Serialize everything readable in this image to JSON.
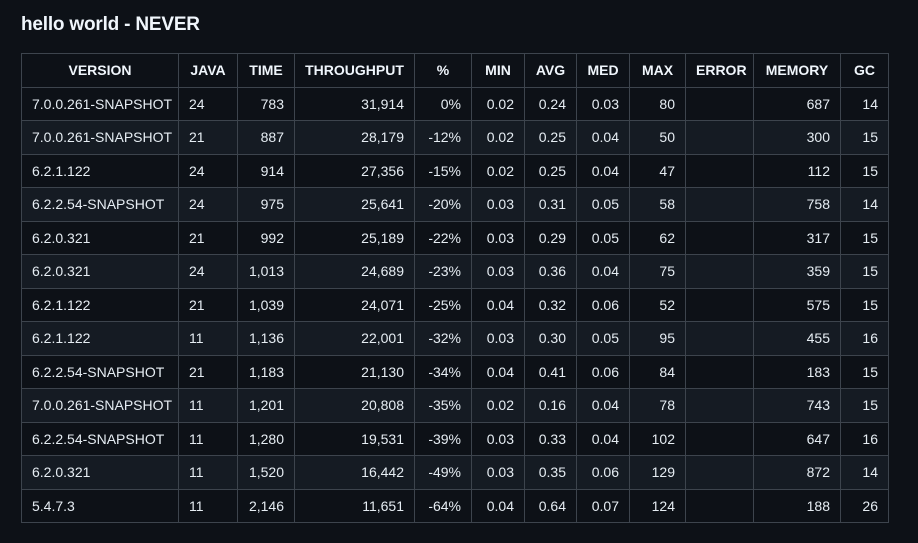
{
  "title": "hello world - NEVER",
  "table": {
    "columns": [
      "VERSION",
      "JAVA",
      "TIME",
      "THROUGHPUT",
      "%",
      "MIN",
      "AVG",
      "MED",
      "MAX",
      "ERROR",
      "MEMORY",
      "GC"
    ],
    "rows": [
      [
        "7.0.0.261-SNAPSHOT",
        "24",
        "783",
        "31,914",
        "0%",
        "0.02",
        "0.24",
        "0.03",
        "80",
        "",
        "687",
        "14"
      ],
      [
        "7.0.0.261-SNAPSHOT",
        "21",
        "887",
        "28,179",
        "-12%",
        "0.02",
        "0.25",
        "0.04",
        "50",
        "",
        "300",
        "15"
      ],
      [
        "6.2.1.122",
        "24",
        "914",
        "27,356",
        "-15%",
        "0.02",
        "0.25",
        "0.04",
        "47",
        "",
        "112",
        "15"
      ],
      [
        "6.2.2.54-SNAPSHOT",
        "24",
        "975",
        "25,641",
        "-20%",
        "0.03",
        "0.31",
        "0.05",
        "58",
        "",
        "758",
        "14"
      ],
      [
        "6.2.0.321",
        "21",
        "992",
        "25,189",
        "-22%",
        "0.03",
        "0.29",
        "0.05",
        "62",
        "",
        "317",
        "15"
      ],
      [
        "6.2.0.321",
        "24",
        "1,013",
        "24,689",
        "-23%",
        "0.03",
        "0.36",
        "0.04",
        "75",
        "",
        "359",
        "15"
      ],
      [
        "6.2.1.122",
        "21",
        "1,039",
        "24,071",
        "-25%",
        "0.04",
        "0.32",
        "0.06",
        "52",
        "",
        "575",
        "15"
      ],
      [
        "6.2.1.122",
        "11",
        "1,136",
        "22,001",
        "-32%",
        "0.03",
        "0.30",
        "0.05",
        "95",
        "",
        "455",
        "16"
      ],
      [
        "6.2.2.54-SNAPSHOT",
        "21",
        "1,183",
        "21,130",
        "-34%",
        "0.04",
        "0.41",
        "0.06",
        "84",
        "",
        "183",
        "15"
      ],
      [
        "7.0.0.261-SNAPSHOT",
        "11",
        "1,201",
        "20,808",
        "-35%",
        "0.02",
        "0.16",
        "0.04",
        "78",
        "",
        "743",
        "15"
      ],
      [
        "6.2.2.54-SNAPSHOT",
        "11",
        "1,280",
        "19,531",
        "-39%",
        "0.03",
        "0.33",
        "0.04",
        "102",
        "",
        "647",
        "16"
      ],
      [
        "6.2.0.321",
        "11",
        "1,520",
        "16,442",
        "-49%",
        "0.03",
        "0.35",
        "0.06",
        "129",
        "",
        "872",
        "14"
      ],
      [
        "5.4.7.3",
        "11",
        "2,146",
        "11,651",
        "-64%",
        "0.04",
        "0.64",
        "0.07",
        "124",
        "",
        "188",
        "26"
      ]
    ]
  }
}
